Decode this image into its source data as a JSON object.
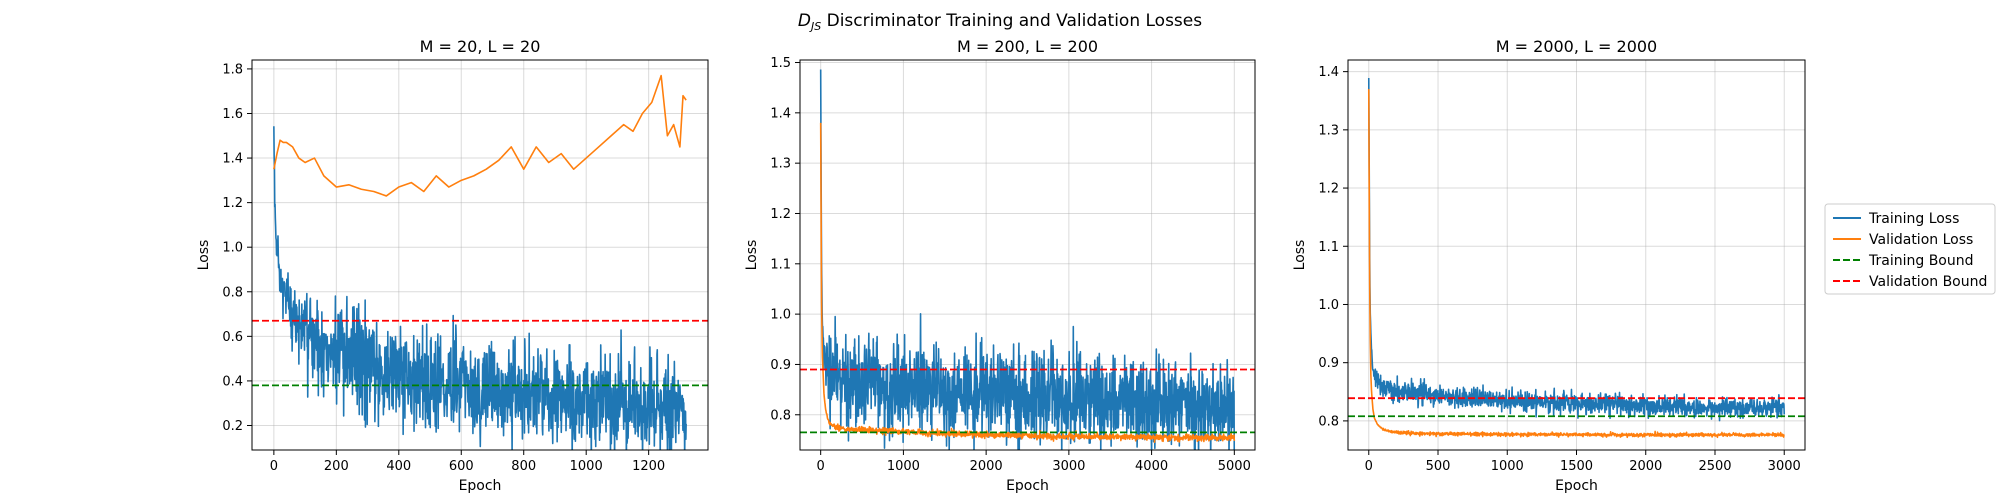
{
  "figure": {
    "suptitle_var": "D",
    "suptitle_sub": "JS",
    "suptitle_rest": " Discriminator Training and Validation Losses"
  },
  "legend": {
    "entries": [
      {
        "label": "Training Loss",
        "color": "#1f77b4",
        "style": "solid"
      },
      {
        "label": "Validation Loss",
        "color": "#ff7f0e",
        "style": "solid"
      },
      {
        "label": "Training Bound",
        "color": "#008000",
        "style": "dashed"
      },
      {
        "label": "Validation Bound",
        "color": "#ff0000",
        "style": "dashed"
      }
    ],
    "placement": "right"
  },
  "chart_data": [
    {
      "type": "line",
      "title": "M = 20, L = 20",
      "xlabel": "Epoch",
      "ylabel": "Loss",
      "xlim": [
        -70,
        1390
      ],
      "ylim": [
        0.09,
        1.84
      ],
      "xticks": [
        0,
        200,
        400,
        600,
        800,
        1000,
        1200
      ],
      "yticks": [
        0.2,
        0.4,
        0.6,
        0.8,
        1.0,
        1.2,
        1.4,
        1.6,
        1.8
      ],
      "ytick_decimals": 1,
      "grid": true,
      "series": [
        {
          "name": "Training Loss",
          "color": "#1f77b4",
          "noisy": true,
          "x": [
            0,
            2,
            5,
            10,
            20,
            30,
            50,
            75,
            100,
            150,
            200,
            300,
            400,
            500,
            600,
            700,
            800,
            900,
            1000,
            1100,
            1200,
            1320
          ],
          "y": [
            1.5,
            1.3,
            1.1,
            0.95,
            0.85,
            0.8,
            0.72,
            0.66,
            0.62,
            0.56,
            0.52,
            0.47,
            0.43,
            0.4,
            0.38,
            0.36,
            0.34,
            0.33,
            0.31,
            0.3,
            0.28,
            0.27
          ],
          "noise_x": [
            0,
            50,
            200,
            600,
            1000,
            1320
          ],
          "noise_y": [
            0.03,
            0.08,
            0.12,
            0.11,
            0.1,
            0.1
          ]
        },
        {
          "name": "Validation Loss",
          "color": "#ff7f0e",
          "noisy": false,
          "x": [
            0,
            10,
            20,
            30,
            40,
            60,
            80,
            100,
            130,
            160,
            200,
            240,
            280,
            320,
            360,
            400,
            440,
            480,
            520,
            560,
            600,
            640,
            680,
            720,
            760,
            800,
            840,
            880,
            920,
            960,
            1000,
            1040,
            1080,
            1120,
            1150,
            1180,
            1210,
            1240,
            1260,
            1280,
            1300,
            1310,
            1320
          ],
          "y": [
            1.35,
            1.42,
            1.48,
            1.47,
            1.47,
            1.45,
            1.4,
            1.38,
            1.4,
            1.32,
            1.27,
            1.28,
            1.26,
            1.25,
            1.23,
            1.27,
            1.29,
            1.25,
            1.32,
            1.27,
            1.3,
            1.32,
            1.35,
            1.39,
            1.45,
            1.35,
            1.45,
            1.38,
            1.42,
            1.35,
            1.4,
            1.45,
            1.5,
            1.55,
            1.52,
            1.6,
            1.65,
            1.77,
            1.5,
            1.55,
            1.45,
            1.68,
            1.66
          ],
          "noise_x": [
            0,
            1320
          ],
          "noise_y": [
            0.0,
            0.0
          ]
        }
      ],
      "hlines": [
        {
          "name": "Training Bound",
          "y": 0.38,
          "color": "#008000"
        },
        {
          "name": "Validation Bound",
          "y": 0.67,
          "color": "#ff0000"
        }
      ]
    },
    {
      "type": "line",
      "title": "M = 200, L = 200",
      "xlabel": "Epoch",
      "ylabel": "Loss",
      "xlim": [
        -250,
        5250
      ],
      "ylim": [
        0.73,
        1.505
      ],
      "xticks": [
        0,
        1000,
        2000,
        3000,
        4000,
        5000
      ],
      "yticks": [
        0.8,
        0.9,
        1.0,
        1.1,
        1.2,
        1.3,
        1.4,
        1.5
      ],
      "ytick_decimals": 1,
      "grid": true,
      "series": [
        {
          "name": "Training Loss",
          "color": "#1f77b4",
          "noisy": true,
          "x": [
            0,
            5,
            10,
            20,
            40,
            60,
            100,
            200,
            300,
            500,
            1000,
            1500,
            2000,
            2500,
            3000,
            3500,
            4000,
            4500,
            5000
          ],
          "y": [
            1.48,
            1.3,
            1.1,
            0.98,
            0.92,
            0.895,
            0.885,
            0.875,
            0.87,
            0.865,
            0.855,
            0.845,
            0.84,
            0.835,
            0.83,
            0.825,
            0.82,
            0.815,
            0.81
          ],
          "noise_x": [
            0,
            100,
            500,
            2000,
            5000
          ],
          "noise_y": [
            0.005,
            0.04,
            0.045,
            0.045,
            0.045
          ]
        },
        {
          "name": "Validation Loss",
          "color": "#ff7f0e",
          "noisy": true,
          "x": [
            0,
            5,
            10,
            20,
            40,
            60,
            80,
            100,
            150,
            200,
            300,
            500,
            1000,
            1500,
            2000,
            3000,
            4000,
            5000
          ],
          "y": [
            1.38,
            1.2,
            1.03,
            0.92,
            0.84,
            0.81,
            0.795,
            0.785,
            0.778,
            0.775,
            0.772,
            0.77,
            0.766,
            0.763,
            0.76,
            0.757,
            0.755,
            0.754
          ],
          "noise_x": [
            0,
            200,
            5000
          ],
          "noise_y": [
            0.0,
            0.003,
            0.003
          ]
        }
      ],
      "hlines": [
        {
          "name": "Training Bound",
          "y": 0.765,
          "color": "#008000"
        },
        {
          "name": "Validation Bound",
          "y": 0.89,
          "color": "#ff0000"
        }
      ]
    },
    {
      "type": "line",
      "title": "M = 2000, L = 2000",
      "xlabel": "Epoch",
      "ylabel": "Loss",
      "xlim": [
        -150,
        3150
      ],
      "ylim": [
        0.75,
        1.42
      ],
      "xticks": [
        0,
        500,
        1000,
        1500,
        2000,
        2500,
        3000
      ],
      "yticks": [
        0.8,
        0.9,
        1.0,
        1.1,
        1.2,
        1.3,
        1.4
      ],
      "ytick_decimals": 1,
      "grid": true,
      "series": [
        {
          "name": "Training Loss",
          "color": "#1f77b4",
          "noisy": true,
          "x": [
            0,
            3,
            6,
            10,
            20,
            30,
            50,
            80,
            120,
            200,
            300,
            500,
            1000,
            1500,
            2000,
            2500,
            3000
          ],
          "y": [
            1.39,
            1.25,
            1.1,
            0.99,
            0.92,
            0.89,
            0.87,
            0.86,
            0.855,
            0.85,
            0.847,
            0.843,
            0.835,
            0.83,
            0.826,
            0.823,
            0.822
          ],
          "noise_x": [
            0,
            50,
            200,
            3000
          ],
          "noise_y": [
            0.002,
            0.008,
            0.009,
            0.008
          ]
        },
        {
          "name": "Validation Loss",
          "color": "#ff7f0e",
          "noisy": true,
          "x": [
            0,
            3,
            6,
            10,
            15,
            20,
            30,
            40,
            60,
            80,
            100,
            150,
            200,
            300,
            500,
            1000,
            2000,
            3000
          ],
          "y": [
            1.37,
            1.2,
            1.05,
            0.95,
            0.88,
            0.85,
            0.82,
            0.805,
            0.795,
            0.79,
            0.786,
            0.782,
            0.78,
            0.779,
            0.778,
            0.777,
            0.776,
            0.776
          ],
          "noise_x": [
            0,
            200,
            3000
          ],
          "noise_y": [
            0.0,
            0.0015,
            0.0015
          ]
        }
      ],
      "hlines": [
        {
          "name": "Training Bound",
          "y": 0.808,
          "color": "#008000"
        },
        {
          "name": "Validation Bound",
          "y": 0.839,
          "color": "#ff0000"
        }
      ]
    }
  ]
}
